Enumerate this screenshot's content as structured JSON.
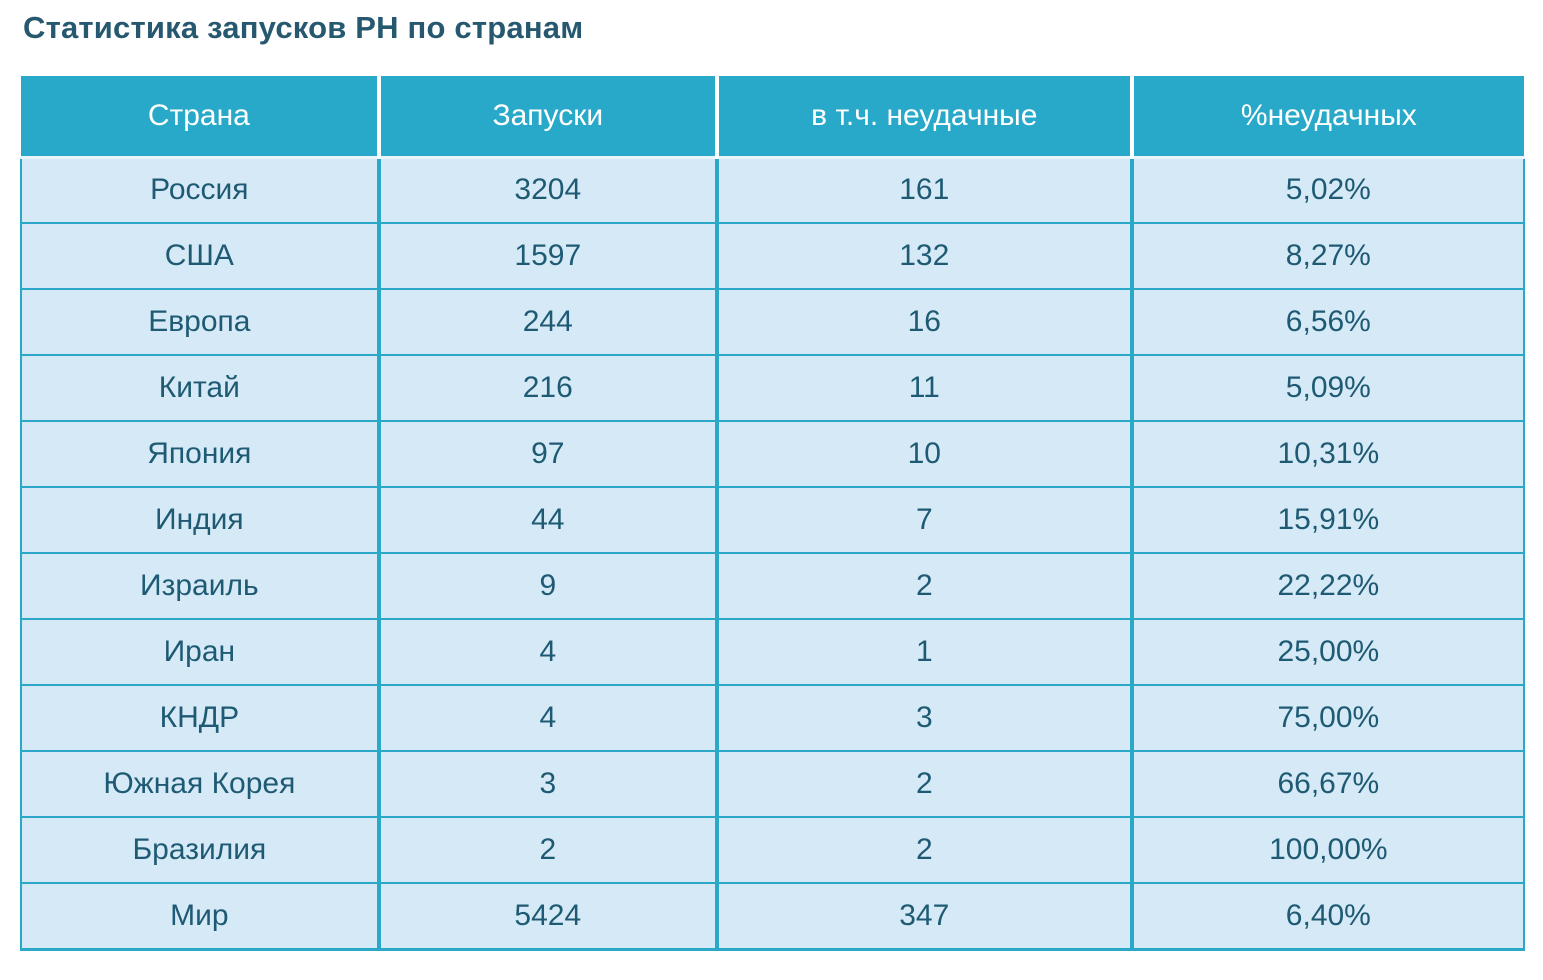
{
  "title": "Статистика запусков РН по странам",
  "table": {
    "columns": [
      "Страна",
      "Запуски",
      "в т.ч. неудачные",
      "%неудачных"
    ],
    "rows": [
      [
        "Россия",
        "3204",
        "161",
        "5,02%"
      ],
      [
        "США",
        "1597",
        "132",
        "8,27%"
      ],
      [
        "Европа",
        "244",
        "16",
        "6,56%"
      ],
      [
        "Китай",
        "216",
        "11",
        "5,09%"
      ],
      [
        "Япония",
        "97",
        "10",
        "10,31%"
      ],
      [
        "Индия",
        "44",
        "7",
        "15,91%"
      ],
      [
        "Израиль",
        "9",
        "2",
        "22,22%"
      ],
      [
        "Иран",
        "4",
        "1",
        "25,00%"
      ],
      [
        "КНДР",
        "4",
        "3",
        "75,00%"
      ],
      [
        "Южная Корея",
        "3",
        "2",
        "66,67%"
      ],
      [
        "Бразилия",
        "2",
        "2",
        "100,00%"
      ],
      [
        "Мир",
        "5424",
        "347",
        "6,40%"
      ]
    ]
  },
  "chart_data": {
    "type": "table",
    "title": "Статистика запусков РН по странам",
    "columns": [
      "Страна",
      "Запуски",
      "в т.ч. неудачные",
      "%неудачных"
    ],
    "rows": [
      {
        "country": "Россия",
        "launches": 3204,
        "failures": 161,
        "failure_pct": "5,02%"
      },
      {
        "country": "США",
        "launches": 1597,
        "failures": 132,
        "failure_pct": "8,27%"
      },
      {
        "country": "Европа",
        "launches": 244,
        "failures": 16,
        "failure_pct": "6,56%"
      },
      {
        "country": "Китай",
        "launches": 216,
        "failures": 11,
        "failure_pct": "5,09%"
      },
      {
        "country": "Япония",
        "launches": 97,
        "failures": 10,
        "failure_pct": "10,31%"
      },
      {
        "country": "Индия",
        "launches": 44,
        "failures": 7,
        "failure_pct": "15,91%"
      },
      {
        "country": "Израиль",
        "launches": 9,
        "failures": 2,
        "failure_pct": "22,22%"
      },
      {
        "country": "Иран",
        "launches": 4,
        "failures": 1,
        "failure_pct": "25,00%"
      },
      {
        "country": "КНДР",
        "launches": 4,
        "failures": 3,
        "failure_pct": "75,00%"
      },
      {
        "country": "Южная Корея",
        "launches": 3,
        "failures": 2,
        "failure_pct": "66,67%"
      },
      {
        "country": "Бразилия",
        "launches": 2,
        "failures": 2,
        "failure_pct": "100,00%"
      },
      {
        "country": "Мир",
        "launches": 5424,
        "failures": 347,
        "failure_pct": "6,40%"
      }
    ]
  },
  "colors": {
    "header_bg": "#29a9c9",
    "row_bg": "#d5eaf6",
    "border": "#2ba8c8",
    "header_text": "#ffffff",
    "cell_text": "#1e5a73",
    "title_text": "#26596f"
  }
}
